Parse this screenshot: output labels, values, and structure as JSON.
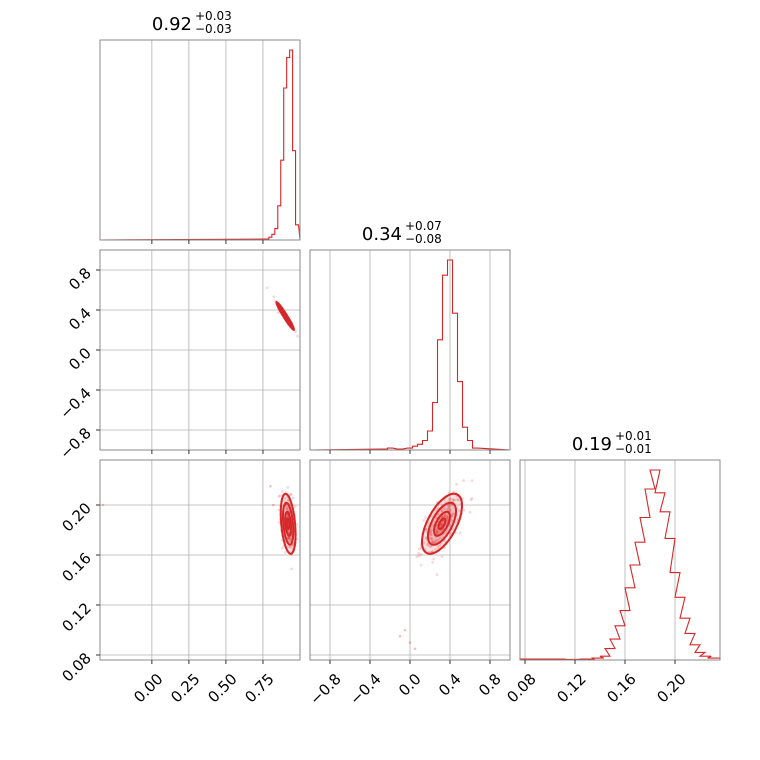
{
  "chart_data": {
    "type": "corner",
    "color": "#d62728",
    "parameters": [
      {
        "title": {
          "value": "0.92",
          "plus": "+0.03",
          "minus": "−0.03"
        },
        "range": [
          -0.35,
          1.0
        ],
        "ticks": [
          0.0,
          0.25,
          0.5,
          0.75
        ],
        "tick_labels": [
          "0.00",
          "0.25",
          "0.50",
          "0.75"
        ]
      },
      {
        "title": {
          "value": "0.34",
          "plus": "+0.07",
          "minus": "−0.08"
        },
        "range": [
          -1.0,
          1.0
        ],
        "ticks": [
          -0.8,
          -0.4,
          0.0,
          0.4,
          0.8
        ],
        "tick_labels": [
          "−0.8",
          "−0.4",
          "0.0",
          "0.4",
          "0.8"
        ]
      },
      {
        "title": {
          "value": "0.19",
          "plus": "+0.01",
          "minus": "−0.01"
        },
        "range": [
          0.076,
          0.236
        ],
        "ticks": [
          0.08,
          0.12,
          0.16,
          0.2
        ],
        "tick_labels": [
          "0.08",
          "0.12",
          "0.16",
          "0.20"
        ]
      }
    ],
    "histograms": [
      {
        "param": 0,
        "bins": [
          {
            "x": 0.78,
            "v": 0.5
          },
          {
            "x": 0.8,
            "v": 1.5
          },
          {
            "x": 0.82,
            "v": 3
          },
          {
            "x": 0.84,
            "v": 6
          },
          {
            "x": 0.86,
            "v": 18
          },
          {
            "x": 0.88,
            "v": 42
          },
          {
            "x": 0.9,
            "v": 80
          },
          {
            "x": 0.92,
            "v": 96
          },
          {
            "x": 0.94,
            "v": 100
          },
          {
            "x": 0.96,
            "v": 47
          },
          {
            "x": 0.98,
            "v": 8
          }
        ]
      },
      {
        "param": 1,
        "bins": [
          {
            "x": -0.25,
            "v": 0.5
          },
          {
            "x": -0.2,
            "v": 1
          },
          {
            "x": -0.1,
            "v": 0.5
          },
          {
            "x": 0.0,
            "v": 1
          },
          {
            "x": 0.05,
            "v": 2
          },
          {
            "x": 0.1,
            "v": 3
          },
          {
            "x": 0.15,
            "v": 5
          },
          {
            "x": 0.2,
            "v": 10
          },
          {
            "x": 0.25,
            "v": 25
          },
          {
            "x": 0.3,
            "v": 58
          },
          {
            "x": 0.35,
            "v": 92
          },
          {
            "x": 0.4,
            "v": 100
          },
          {
            "x": 0.45,
            "v": 72
          },
          {
            "x": 0.5,
            "v": 36
          },
          {
            "x": 0.55,
            "v": 12
          },
          {
            "x": 0.6,
            "v": 5
          },
          {
            "x": 0.65,
            "v": 1
          }
        ]
      },
      {
        "param": 2,
        "bins": [
          {
            "x": 0.082,
            "v": 0.5
          },
          {
            "x": 0.094,
            "v": 0.5
          },
          {
            "x": 0.106,
            "v": 0.5
          },
          {
            "x": 0.118,
            "v": 0.3
          },
          {
            "x": 0.13,
            "v": 0.5
          },
          {
            "x": 0.14,
            "v": 1
          },
          {
            "x": 0.146,
            "v": 2
          },
          {
            "x": 0.15,
            "v": 6
          },
          {
            "x": 0.154,
            "v": 11
          },
          {
            "x": 0.158,
            "v": 18
          },
          {
            "x": 0.162,
            "v": 26
          },
          {
            "x": 0.166,
            "v": 38
          },
          {
            "x": 0.17,
            "v": 50
          },
          {
            "x": 0.174,
            "v": 62
          },
          {
            "x": 0.178,
            "v": 75
          },
          {
            "x": 0.182,
            "v": 90
          },
          {
            "x": 0.186,
            "v": 100
          },
          {
            "x": 0.19,
            "v": 88
          },
          {
            "x": 0.194,
            "v": 78
          },
          {
            "x": 0.198,
            "v": 64
          },
          {
            "x": 0.202,
            "v": 46
          },
          {
            "x": 0.206,
            "v": 33
          },
          {
            "x": 0.21,
            "v": 22
          },
          {
            "x": 0.214,
            "v": 14
          },
          {
            "x": 0.218,
            "v": 8
          },
          {
            "x": 0.222,
            "v": 4
          },
          {
            "x": 0.226,
            "v": 2
          },
          {
            "x": 0.232,
            "v": 1
          }
        ]
      }
    ],
    "scatter_panels": [
      {
        "x_param": 0,
        "y_param": 1,
        "center": [
          0.9,
          0.34
        ],
        "sigma": [
          0.03,
          0.07
        ],
        "rho": -0.97,
        "n_points": 180
      },
      {
        "x_param": 0,
        "y_param": 2,
        "center": [
          0.92,
          0.185
        ],
        "sigma": [
          0.025,
          0.012
        ],
        "rho": -0.35,
        "n_points": 220,
        "outliers": [
          [
            0.8,
            0.215
          ],
          [
            0.82,
            0.2
          ],
          [
            0.97,
            0.17
          ],
          [
            -0.33,
            0.2
          ]
        ]
      },
      {
        "x_param": 1,
        "y_param": 2,
        "center": [
          0.32,
          0.185
        ],
        "sigma": [
          0.1,
          0.012
        ],
        "rho": 0.6,
        "n_points": 240,
        "outliers": [
          [
            -0.05,
            0.1
          ],
          [
            -0.1,
            0.095
          ],
          [
            0.0,
            0.09
          ],
          [
            0.05,
            0.085
          ]
        ]
      }
    ]
  }
}
